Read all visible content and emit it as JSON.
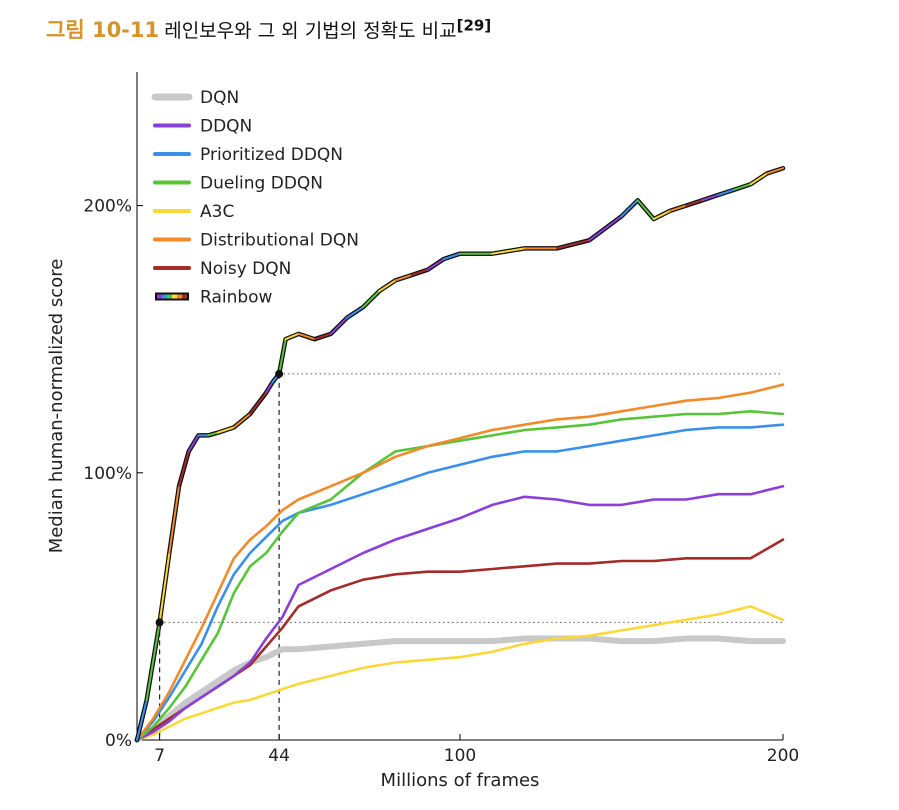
{
  "figure": {
    "label": "그림 10-11",
    "caption": "레인보우와 그 외 기법의 정확도 비교",
    "ref": "[29]"
  },
  "chart_data": {
    "type": "line",
    "title": "",
    "xlabel": "Millions of frames",
    "ylabel": "Median human-normalized score",
    "xlim": [
      0,
      200
    ],
    "ylim": [
      0,
      250
    ],
    "x_ticks": [
      7,
      44,
      100,
      200
    ],
    "y_ticks": [
      {
        "value": 0,
        "label": "0%"
      },
      {
        "value": 100,
        "label": "100%"
      },
      {
        "value": 200,
        "label": "200%"
      }
    ],
    "grid": false,
    "legend_position": "top-left",
    "annotations": {
      "rainbow_markers": [
        {
          "x": 7,
          "y": 44
        },
        {
          "x": 44,
          "y": 137
        }
      ],
      "guide_levels": [
        44,
        137
      ]
    },
    "series": [
      {
        "name": "DQN",
        "color": "#c8c8c8",
        "x": [
          0,
          5,
          10,
          15,
          20,
          25,
          30,
          35,
          40,
          45,
          50,
          60,
          70,
          80,
          90,
          100,
          110,
          120,
          130,
          140,
          150,
          160,
          170,
          180,
          190,
          200
        ],
        "y": [
          0,
          4,
          9,
          14,
          18,
          22,
          26,
          29,
          31,
          34,
          34,
          35,
          36,
          37,
          37,
          37,
          37,
          38,
          38,
          38,
          37,
          37,
          38,
          38,
          37,
          37
        ]
      },
      {
        "name": "DDQN",
        "color": "#8a3fd8",
        "x": [
          0,
          5,
          10,
          15,
          20,
          25,
          30,
          35,
          40,
          45,
          50,
          60,
          70,
          80,
          90,
          100,
          110,
          120,
          130,
          140,
          150,
          160,
          170,
          180,
          190,
          200
        ],
        "y": [
          0,
          3,
          7,
          12,
          16,
          20,
          24,
          29,
          38,
          46,
          58,
          64,
          70,
          75,
          79,
          83,
          88,
          91,
          90,
          88,
          88,
          90,
          90,
          92,
          92,
          95
        ]
      },
      {
        "name": "Prioritized DDQN",
        "color": "#3a8fea",
        "x": [
          0,
          5,
          10,
          15,
          20,
          25,
          30,
          35,
          40,
          45,
          50,
          60,
          70,
          80,
          90,
          100,
          110,
          120,
          130,
          140,
          150,
          160,
          170,
          180,
          190,
          200
        ],
        "y": [
          0,
          7,
          16,
          26,
          36,
          50,
          62,
          70,
          76,
          82,
          85,
          88,
          92,
          96,
          100,
          103,
          106,
          108,
          108,
          110,
          112,
          114,
          116,
          117,
          117,
          118
        ]
      },
      {
        "name": "Dueling DDQN",
        "color": "#58c43a",
        "x": [
          0,
          5,
          10,
          15,
          20,
          25,
          30,
          35,
          40,
          45,
          50,
          60,
          70,
          80,
          90,
          100,
          110,
          120,
          130,
          140,
          150,
          160,
          170,
          180,
          190,
          200
        ],
        "y": [
          0,
          5,
          12,
          20,
          30,
          40,
          55,
          65,
          70,
          78,
          85,
          90,
          100,
          108,
          110,
          112,
          114,
          116,
          117,
          118,
          120,
          121,
          122,
          122,
          123,
          122
        ]
      },
      {
        "name": "A3C",
        "color": "#fbd83a",
        "x": [
          0,
          5,
          10,
          15,
          20,
          25,
          30,
          35,
          40,
          45,
          50,
          60,
          70,
          80,
          90,
          100,
          110,
          120,
          130,
          140,
          150,
          160,
          170,
          180,
          190,
          200
        ],
        "y": [
          0,
          2,
          5,
          8,
          10,
          12,
          14,
          15,
          17,
          19,
          21,
          24,
          27,
          29,
          30,
          31,
          33,
          36,
          38,
          39,
          41,
          43,
          45,
          47,
          50,
          45
        ]
      },
      {
        "name": "Distributional DQN",
        "color": "#f08a2a",
        "x": [
          0,
          5,
          10,
          15,
          20,
          25,
          30,
          35,
          40,
          45,
          50,
          60,
          70,
          80,
          90,
          100,
          110,
          120,
          130,
          140,
          150,
          160,
          170,
          180,
          190,
          200
        ],
        "y": [
          0,
          8,
          18,
          30,
          42,
          55,
          68,
          75,
          80,
          86,
          90,
          95,
          100,
          106,
          110,
          113,
          116,
          118,
          120,
          121,
          123,
          125,
          127,
          128,
          130,
          133
        ]
      },
      {
        "name": "Noisy DQN",
        "color": "#a22c2a",
        "x": [
          0,
          5,
          10,
          15,
          20,
          25,
          30,
          35,
          40,
          45,
          50,
          60,
          70,
          80,
          90,
          100,
          110,
          120,
          130,
          140,
          150,
          160,
          170,
          180,
          190,
          200
        ],
        "y": [
          0,
          4,
          8,
          12,
          16,
          20,
          24,
          28,
          35,
          42,
          50,
          56,
          60,
          62,
          63,
          63,
          64,
          65,
          66,
          66,
          67,
          67,
          68,
          68,
          68,
          75
        ]
      },
      {
        "name": "Rainbow",
        "color": "#222222",
        "x": [
          0,
          3,
          7,
          10,
          13,
          16,
          19,
          22,
          25,
          30,
          35,
          40,
          42,
          44,
          46,
          50,
          55,
          60,
          65,
          70,
          75,
          80,
          85,
          90,
          95,
          100,
          110,
          120,
          130,
          140,
          150,
          155,
          160,
          165,
          170,
          175,
          180,
          185,
          190,
          195,
          200
        ],
        "y": [
          0,
          15,
          44,
          70,
          95,
          108,
          114,
          114,
          115,
          117,
          122,
          130,
          134,
          137,
          150,
          152,
          150,
          152,
          158,
          162,
          168,
          172,
          174,
          176,
          180,
          182,
          182,
          184,
          184,
          187,
          196,
          202,
          195,
          198,
          200,
          202,
          204,
          206,
          208,
          212,
          214
        ]
      }
    ]
  }
}
